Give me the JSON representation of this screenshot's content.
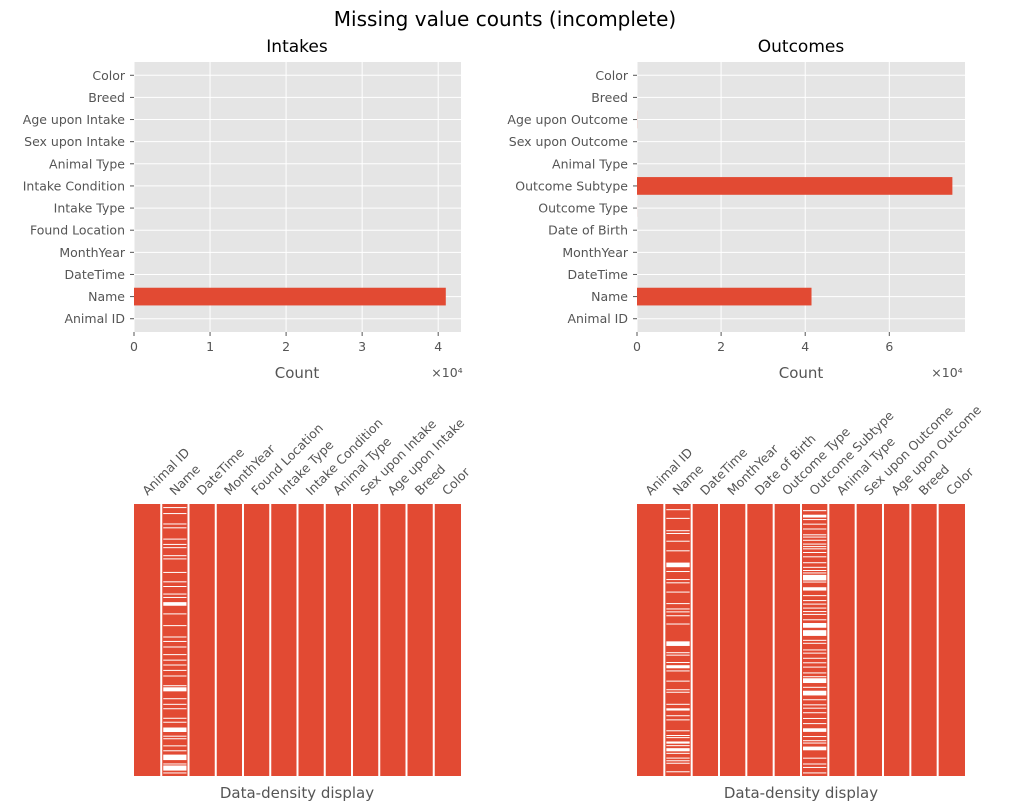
{
  "figure": {
    "suptitle": "Missing value counts (incomplete)"
  },
  "chart_data": [
    {
      "id": "intakes",
      "type": "bar",
      "orientation": "horizontal",
      "title": "Intakes",
      "xlabel": "Count",
      "ylabel": "",
      "offset_text": "×10⁴",
      "xlim": [
        0,
        43000
      ],
      "xticks": [
        0,
        10000,
        20000,
        30000,
        40000
      ],
      "xtick_labels": [
        "0",
        "1",
        "2",
        "3",
        "4"
      ],
      "categories": [
        "Animal ID",
        "Name",
        "DateTime",
        "MonthYear",
        "Found Location",
        "Intake Type",
        "Intake Condition",
        "Animal Type",
        "Sex upon Intake",
        "Age upon Intake",
        "Breed",
        "Color"
      ],
      "values": [
        0,
        41000,
        0,
        0,
        0,
        0,
        0,
        0,
        0,
        0,
        1,
        0
      ],
      "grid": true,
      "color": "#E24A33"
    },
    {
      "id": "outcomes",
      "type": "bar",
      "orientation": "horizontal",
      "title": "Outcomes",
      "xlabel": "Count",
      "ylabel": "",
      "offset_text": "×10⁴",
      "xlim": [
        0,
        78000
      ],
      "xticks": [
        0,
        20000,
        40000,
        60000
      ],
      "xtick_labels": [
        "0",
        "2",
        "4",
        "6"
      ],
      "categories": [
        "Animal ID",
        "Name",
        "DateTime",
        "MonthYear",
        "Date of Birth",
        "Outcome Type",
        "Outcome Subtype",
        "Animal Type",
        "Sex upon Outcome",
        "Age upon Outcome",
        "Breed",
        "Color"
      ],
      "values": [
        0,
        41500,
        0,
        0,
        0,
        12,
        75000,
        0,
        1,
        25,
        0,
        0
      ],
      "grid": true,
      "color": "#E24A33"
    },
    {
      "id": "intakes-density",
      "type": "heatmap",
      "xlabel": "Data-density display",
      "columns": [
        "Animal ID",
        "Name",
        "DateTime",
        "MonthYear",
        "Found Location",
        "Intake Type",
        "Intake Condition",
        "Animal Type",
        "Sex upon Intake",
        "Age upon Intake",
        "Breed",
        "Color"
      ],
      "missing_fraction": [
        0,
        0.3,
        0,
        0,
        0,
        0,
        0,
        0,
        0,
        0,
        0,
        0
      ],
      "present_color": "#E24A33",
      "missing_color": "#ffffff"
    },
    {
      "id": "outcomes-density",
      "type": "heatmap",
      "xlabel": "Data-density display",
      "columns": [
        "Animal ID",
        "Name",
        "DateTime",
        "MonthYear",
        "Date of Birth",
        "Outcome Type",
        "Outcome Subtype",
        "Animal Type",
        "Sex upon Outcome",
        "Age upon Outcome",
        "Breed",
        "Color"
      ],
      "missing_fraction": [
        0,
        0.3,
        0,
        0,
        0,
        0,
        0.5,
        0,
        0,
        0,
        0,
        0
      ],
      "present_color": "#E24A33",
      "missing_color": "#ffffff"
    }
  ]
}
